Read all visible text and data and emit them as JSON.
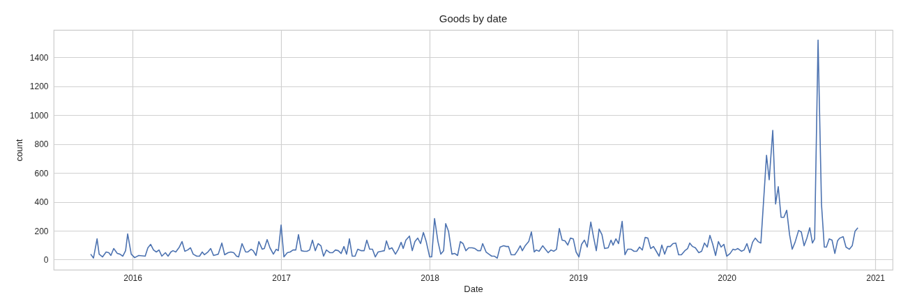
{
  "chart_data": {
    "type": "line",
    "title": "Goods by date",
    "xlabel": "Date",
    "ylabel": "count",
    "color": "#4c72b0",
    "grid": true,
    "xlim": [
      2015.469,
      2021.117
    ],
    "xticks": [
      2016,
      2017,
      2018,
      2019,
      2020,
      2021
    ],
    "ylim": [
      -70,
      1590
    ],
    "yticks": [
      0,
      200,
      400,
      600,
      800,
      1000,
      1200,
      1400
    ],
    "x": [
      2015.718,
      2015.737,
      2015.761,
      2015.775,
      2015.798,
      2015.822,
      2015.84,
      2015.854,
      2015.873,
      2015.897,
      2015.915,
      2015.934,
      2015.953,
      2015.967,
      2015.991,
      2016.014,
      2016.042,
      2016.085,
      2016.103,
      2016.122,
      2016.141,
      2016.16,
      2016.178,
      2016.197,
      2016.221,
      2016.239,
      2016.258,
      2016.272,
      2016.291,
      2016.315,
      2016.333,
      2016.352,
      2016.371,
      2016.39,
      2016.408,
      2016.432,
      2016.451,
      2016.469,
      2016.484,
      2016.507,
      2016.526,
      2016.545,
      2016.563,
      2016.577,
      2016.601,
      2016.62,
      2016.643,
      2016.662,
      2016.681,
      2016.7,
      2016.714,
      2016.737,
      2016.761,
      2016.775,
      2016.798,
      2016.812,
      2016.831,
      2016.85,
      2016.873,
      2016.887,
      2016.906,
      2016.925,
      2016.948,
      2016.967,
      2016.981,
      2017.0,
      2017.019,
      2017.042,
      2017.061,
      2017.08,
      2017.099,
      2017.117,
      2017.136,
      2017.155,
      2017.174,
      2017.192,
      2017.211,
      2017.23,
      2017.249,
      2017.268,
      2017.286,
      2017.305,
      2017.329,
      2017.347,
      2017.366,
      2017.385,
      2017.404,
      2017.423,
      2017.441,
      2017.46,
      2017.479,
      2017.498,
      2017.516,
      2017.54,
      2017.559,
      2017.577,
      2017.596,
      2017.615,
      2017.634,
      2017.653,
      2017.676,
      2017.695,
      2017.709,
      2017.728,
      2017.746,
      2017.77,
      2017.789,
      2017.808,
      2017.822,
      2017.84,
      2017.864,
      2017.883,
      2017.901,
      2017.92,
      2017.939,
      2017.958,
      2017.977,
      2018.0,
      2018.014,
      2018.033,
      2018.056,
      2018.075,
      2018.094,
      2018.108,
      2018.127,
      2018.15,
      2018.169,
      2018.188,
      2018.207,
      2018.225,
      2018.244,
      2018.263,
      2018.286,
      2018.305,
      2018.324,
      2018.343,
      2018.357,
      2018.38,
      2018.399,
      2018.418,
      2018.437,
      2018.455,
      2018.474,
      2018.498,
      2018.516,
      2018.531,
      2018.549,
      2018.573,
      2018.592,
      2018.61,
      2018.624,
      2018.643,
      2018.667,
      2018.685,
      2018.704,
      2018.718,
      2018.737,
      2018.761,
      2018.779,
      2018.798,
      2018.817,
      2018.836,
      2018.854,
      2018.873,
      2018.892,
      2018.911,
      2018.93,
      2018.948,
      2018.967,
      2018.986,
      2019.005,
      2019.023,
      2019.042,
      2019.061,
      2019.085,
      2019.103,
      2019.122,
      2019.141,
      2019.16,
      2019.178,
      2019.202,
      2019.221,
      2019.235,
      2019.254,
      2019.272,
      2019.296,
      2019.315,
      2019.333,
      2019.357,
      2019.376,
      2019.394,
      2019.413,
      2019.432,
      2019.451,
      2019.469,
      2019.488,
      2019.507,
      2019.526,
      2019.545,
      2019.563,
      2019.582,
      2019.601,
      2019.62,
      2019.638,
      2019.657,
      2019.676,
      2019.695,
      2019.718,
      2019.737,
      2019.751,
      2019.77,
      2019.789,
      2019.812,
      2019.831,
      2019.85,
      2019.869,
      2019.887,
      2019.906,
      2019.925,
      2019.944,
      2019.962,
      2019.981,
      2020.0,
      2020.023,
      2020.042,
      2020.056,
      2020.075,
      2020.099,
      2020.117,
      2020.136,
      2020.155,
      2020.174,
      2020.192,
      2020.211,
      2020.23,
      2020.268,
      2020.286,
      2020.31,
      2020.329,
      2020.347,
      2020.366,
      2020.385,
      2020.404,
      2020.423,
      2020.441,
      2020.46,
      2020.484,
      2020.502,
      2020.521,
      2020.54,
      2020.559,
      2020.577,
      2020.592,
      2020.615,
      2020.638,
      2020.657,
      2020.671,
      2020.69,
      2020.709,
      2020.728,
      2020.746,
      2020.761,
      2020.784,
      2020.803,
      2020.826,
      2020.845,
      2020.864,
      2020.883
    ],
    "values": [
      38,
      11,
      144,
      38,
      19,
      53,
      48,
      29,
      77,
      43,
      38,
      24,
      62,
      178,
      38,
      14,
      29,
      24,
      82,
      106,
      67,
      53,
      67,
      24,
      48,
      24,
      53,
      62,
      53,
      87,
      125,
      58,
      67,
      82,
      38,
      24,
      24,
      53,
      34,
      53,
      77,
      29,
      34,
      38,
      115,
      34,
      48,
      53,
      48,
      24,
      19,
      111,
      53,
      53,
      72,
      62,
      29,
      125,
      72,
      77,
      139,
      82,
      38,
      72,
      62,
      240,
      19,
      48,
      53,
      67,
      67,
      173,
      62,
      58,
      58,
      67,
      135,
      62,
      111,
      96,
      24,
      67,
      48,
      48,
      67,
      62,
      43,
      91,
      38,
      144,
      24,
      24,
      72,
      62,
      62,
      135,
      72,
      72,
      19,
      53,
      58,
      62,
      130,
      72,
      82,
      38,
      72,
      120,
      77,
      135,
      163,
      62,
      125,
      149,
      111,
      188,
      125,
      19,
      19,
      284,
      125,
      38,
      62,
      250,
      197,
      38,
      43,
      29,
      125,
      111,
      62,
      82,
      82,
      77,
      62,
      62,
      111,
      53,
      38,
      24,
      24,
      10,
      87,
      96,
      91,
      91,
      34,
      34,
      62,
      96,
      62,
      96,
      125,
      192,
      53,
      67,
      58,
      96,
      72,
      48,
      67,
      58,
      72,
      216,
      135,
      130,
      101,
      149,
      144,
      53,
      19,
      106,
      135,
      87,
      260,
      159,
      62,
      212,
      173,
      77,
      82,
      135,
      101,
      144,
      111,
      265,
      34,
      72,
      72,
      58,
      58,
      87,
      67,
      154,
      149,
      77,
      91,
      58,
      24,
      101,
      38,
      91,
      91,
      111,
      115,
      34,
      34,
      62,
      77,
      115,
      91,
      82,
      48,
      58,
      115,
      87,
      168,
      106,
      29,
      125,
      87,
      106,
      24,
      43,
      72,
      67,
      77,
      58,
      67,
      111,
      48,
      120,
      149,
      125,
      115,
      722,
      553,
      895,
      385,
      505,
      293,
      293,
      342,
      173,
      72,
      120,
      202,
      192,
      96,
      150,
      221,
      115,
      144,
      1520,
      385,
      87,
      87,
      144,
      135,
      43,
      130,
      149,
      159,
      87,
      72,
      96,
      197,
      221
    ]
  }
}
